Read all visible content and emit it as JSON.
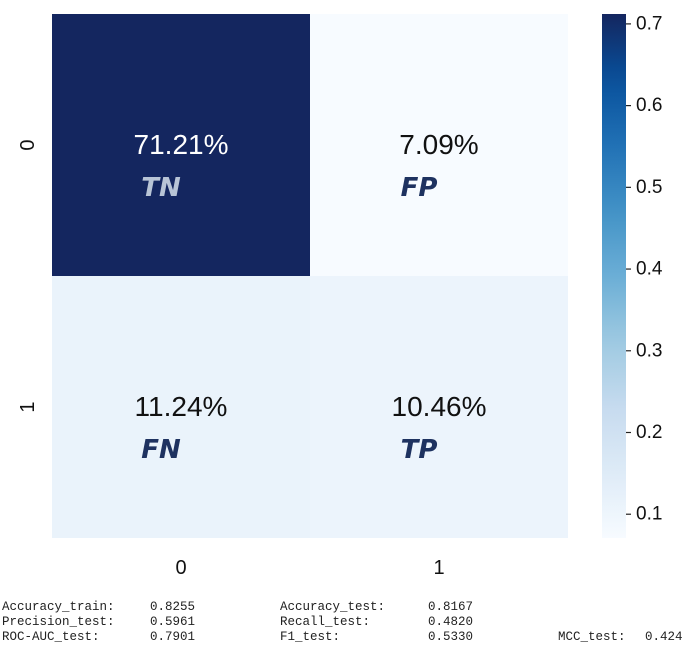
{
  "chart_data": {
    "type": "heatmap",
    "x_categories": [
      "0",
      "1"
    ],
    "y_categories": [
      "0",
      "1"
    ],
    "values": [
      [
        0.7121,
        0.0709
      ],
      [
        0.1124,
        0.1046
      ]
    ],
    "cell_labels": [
      [
        "71.21%",
        "7.09%"
      ],
      [
        "11.24%",
        "10.46%"
      ]
    ],
    "cell_tags": [
      [
        "TN",
        "FP"
      ],
      [
        "FN",
        "TP"
      ]
    ],
    "colorbar": {
      "min": 0.0709,
      "max": 0.7121,
      "ticks": [
        "0.1",
        "0.2",
        "0.3",
        "0.4",
        "0.5",
        "0.6",
        "0.7"
      ],
      "tick_values": [
        0.1,
        0.2,
        0.3,
        0.4,
        0.5,
        0.6,
        0.7
      ],
      "colormap": "Blues"
    },
    "colors": {
      "cell_text_dark": "#111111",
      "cell_text_light": "#ffffff",
      "tag_on_dark": "#b8c4d6",
      "tag_on_light": "#1e3260"
    }
  },
  "metrics": {
    "row1": [
      {
        "label": "Accuracy_train:",
        "value": "0.8255"
      },
      {
        "label": "Accuracy_test:",
        "value": "0.8167"
      }
    ],
    "row2": [
      {
        "label": "Precision_test:",
        "value": "0.5961"
      },
      {
        "label": "Recall_test:",
        "value": "0.4820"
      }
    ],
    "row3": [
      {
        "label": "ROC-AUC_test:",
        "value": "0.7901"
      },
      {
        "label": "F1_test:",
        "value": "0.5330"
      },
      {
        "label": "MCC_test:",
        "value": "0.424"
      }
    ]
  }
}
